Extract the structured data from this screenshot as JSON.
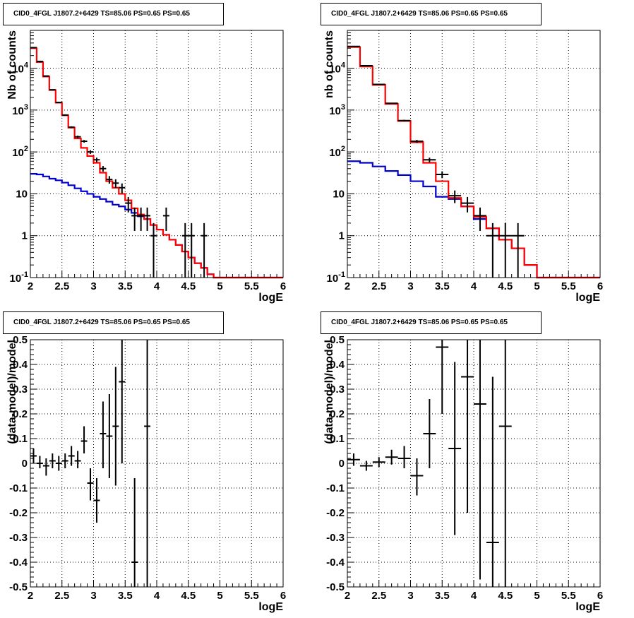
{
  "panels": [
    {
      "title": "CID0_4FGL J1807.2+6429 TS=85.06 PS=0.65 PS=0.65"
    },
    {
      "title": "CID0_4FGL J1807.2+6429 TS=85.06 PS=0.65 PS=0.65"
    },
    {
      "title": "CID0_4FGL J1807.2+6429 TS=85.06 PS=0.65 PS=0.65"
    },
    {
      "title": "CID0_4FGL J1807.2+6429 TS=85.06 PS=0.65 PS=0.65"
    }
  ],
  "colors": {
    "data": "#000000",
    "model_total": "#ff0000",
    "model_background": "#0000cc",
    "grid": "#000000"
  },
  "chart_data": [
    {
      "type": "line",
      "title": "CID0_4FGL J1807.2+6429 TS=85.06 PS=0.65 PS=0.65",
      "xlabel": "logE",
      "ylabel": "Nb of counts",
      "xlim": [
        2,
        6
      ],
      "ylim": [
        0.1,
        80000
      ],
      "yscale": "log",
      "grid": true,
      "xticks": [
        "2",
        "2.5",
        "3",
        "3.5",
        "4",
        "4.5",
        "5",
        "5.5",
        "6"
      ],
      "yticks": [
        "10^-1",
        "1",
        "10",
        "10^2",
        "10^3",
        "10^4"
      ],
      "bin_edges": [
        2.0,
        2.1,
        2.2,
        2.3,
        2.4,
        2.5,
        2.6,
        2.7,
        2.8,
        2.9,
        3.0,
        3.1,
        3.2,
        3.3,
        3.4,
        3.5,
        3.6,
        3.7,
        3.8,
        3.9,
        4.0,
        4.1,
        4.2,
        4.3,
        4.4,
        4.5,
        4.6,
        4.7,
        4.8,
        4.9,
        5.0,
        5.1,
        5.2,
        5.3,
        5.4,
        5.5,
        5.6,
        5.7,
        5.8,
        5.9,
        6.0
      ],
      "series": [
        {
          "values": [
            30000,
            14000,
            6300,
            3000,
            1500,
            750,
            380,
            210,
            125,
            80,
            55,
            32,
            20,
            14,
            10,
            7,
            4.5,
            3.2,
            2.5,
            1.8,
            1.4,
            1.05,
            0.8,
            0.6,
            0.42,
            0.3,
            0.22,
            0.17,
            0.12,
            0.1,
            0.1,
            0.1,
            0.1,
            0.1,
            0.1,
            0.1,
            0.1,
            0.1,
            0.1,
            0.1
          ]
        },
        {
          "values": [
            30,
            29,
            26,
            23,
            21,
            18.5,
            16,
            13.5,
            11.5,
            10,
            8.5,
            7.5,
            6.5,
            5.5,
            5,
            4.2,
            3.5,
            2.9,
            2.5,
            1.8,
            1.4,
            1.05,
            0.8,
            0.6,
            0.42,
            0.3,
            0.22,
            0.17,
            0.12,
            0.1,
            0.1,
            0.1,
            0.1,
            0.1,
            0.1,
            0.1,
            0.1,
            0.1,
            0.1,
            0.1
          ]
        },
        {
          "points": [
            {
              "x": 2.05,
              "y": 31000,
              "lo": 30800,
              "hi": 31200
            },
            {
              "x": 2.15,
              "y": 14500,
              "lo": 14380,
              "hi": 14620
            },
            {
              "x": 2.25,
              "y": 6500,
              "lo": 6420,
              "hi": 6580
            },
            {
              "x": 2.35,
              "y": 3050,
              "lo": 2995,
              "hi": 3105
            },
            {
              "x": 2.45,
              "y": 1520,
              "lo": 1481,
              "hi": 1559
            },
            {
              "x": 2.55,
              "y": 760,
              "lo": 732,
              "hi": 788
            },
            {
              "x": 2.65,
              "y": 390,
              "lo": 370,
              "hi": 410
            },
            {
              "x": 2.75,
              "y": 230,
              "lo": 215,
              "hi": 245
            },
            {
              "x": 2.85,
              "y": 180,
              "lo": 167,
              "hi": 193
            },
            {
              "x": 2.95,
              "y": 100,
              "lo": 90,
              "hi": 110
            },
            {
              "x": 3.05,
              "y": 65,
              "lo": 57,
              "hi": 73
            },
            {
              "x": 3.15,
              "y": 40,
              "lo": 34,
              "hi": 46
            },
            {
              "x": 3.25,
              "y": 22,
              "lo": 17.5,
              "hi": 26.5
            },
            {
              "x": 3.35,
              "y": 18,
              "lo": 13.8,
              "hi": 22.2
            },
            {
              "x": 3.45,
              "y": 14,
              "lo": 10.3,
              "hi": 17.7
            },
            {
              "x": 3.55,
              "y": 6,
              "lo": 3.6,
              "hi": 8.4
            },
            {
              "x": 3.65,
              "y": 3,
              "lo": 1.3,
              "hi": 4.7
            },
            {
              "x": 3.75,
              "y": 3,
              "lo": 1.3,
              "hi": 4.7
            },
            {
              "x": 3.85,
              "y": 3,
              "lo": 1.3,
              "hi": 4.7
            },
            {
              "x": 3.95,
              "y": 1,
              "lo": 0.1,
              "hi": 2.0
            },
            {
              "x": 4.15,
              "y": 3,
              "lo": 1.3,
              "hi": 4.7
            },
            {
              "x": 4.45,
              "y": 1,
              "lo": 0.1,
              "hi": 2.0
            },
            {
              "x": 4.55,
              "y": 1,
              "lo": 0.1,
              "hi": 2.0
            },
            {
              "x": 4.75,
              "y": 1,
              "lo": 0.1,
              "hi": 2.0
            }
          ]
        }
      ]
    },
    {
      "type": "line",
      "title": "CID0_4FGL J1807.2+6429 TS=85.06 PS=0.65 PS=0.65",
      "xlabel": "logE",
      "ylabel": "nb of counts",
      "xlim": [
        2,
        6
      ],
      "ylim": [
        0.1,
        80000
      ],
      "yscale": "log",
      "grid": true,
      "xticks": [
        "2",
        "2.5",
        "3",
        "3.5",
        "4",
        "4.5",
        "5",
        "5.5",
        "6"
      ],
      "yticks": [
        "10^-1",
        "1",
        "10",
        "10^2",
        "10^3",
        "10^4"
      ],
      "bin_edges": [
        2.0,
        2.2,
        2.4,
        2.6,
        2.8,
        3.0,
        3.2,
        3.4,
        3.6,
        3.8,
        4.0,
        4.2,
        4.4,
        4.6,
        4.8,
        5.0,
        5.2,
        5.4,
        5.6,
        5.8,
        6.0
      ],
      "series": [
        {
          "values": [
            32000,
            11000,
            4000,
            1400,
            550,
            170,
            55,
            20,
            8,
            5,
            2.8,
            1.5,
            0.8,
            0.5,
            0.2,
            0.1,
            0.1,
            0.1,
            0.1,
            0.1
          ]
        },
        {
          "values": [
            60,
            55,
            45,
            35,
            28,
            20,
            15,
            8.5,
            7.5,
            5,
            2.5,
            1.5,
            0.8,
            0.5,
            0.2,
            0.1,
            0.1,
            0.1,
            0.1,
            0.1
          ]
        },
        {
          "points": [
            {
              "x": 2.1,
              "y": 33000,
              "lo": 32800,
              "hi": 33200
            },
            {
              "x": 2.3,
              "y": 11500,
              "lo": 11380,
              "hi": 11620
            },
            {
              "x": 2.5,
              "y": 4100,
              "lo": 4030,
              "hi": 4170
            },
            {
              "x": 2.7,
              "y": 1450,
              "lo": 1410,
              "hi": 1490
            },
            {
              "x": 2.9,
              "y": 560,
              "lo": 535,
              "hi": 585
            },
            {
              "x": 3.1,
              "y": 180,
              "lo": 166,
              "hi": 194
            },
            {
              "x": 3.3,
              "y": 65,
              "lo": 57,
              "hi": 73
            },
            {
              "x": 3.5,
              "y": 29,
              "lo": 23.6,
              "hi": 34.4
            },
            {
              "x": 3.7,
              "y": 9,
              "lo": 6,
              "hi": 12
            },
            {
              "x": 3.9,
              "y": 6,
              "lo": 3.6,
              "hi": 8.4
            },
            {
              "x": 4.1,
              "y": 3,
              "lo": 1.3,
              "hi": 4.7
            },
            {
              "x": 4.3,
              "y": 1,
              "lo": 0.1,
              "hi": 2.0
            },
            {
              "x": 4.5,
              "y": 1,
              "lo": 0.1,
              "hi": 2.0
            },
            {
              "x": 4.7,
              "y": 1,
              "lo": 0.1,
              "hi": 2.0
            }
          ]
        }
      ]
    },
    {
      "type": "scatter",
      "title": "CID0_4FGL J1807.2+6429 TS=85.06 PS=0.65 PS=0.65",
      "xlabel": "logE",
      "ylabel": "(data-model)/model",
      "xlim": [
        2,
        6
      ],
      "ylim": [
        -0.5,
        0.5
      ],
      "grid": true,
      "xticks": [
        "2",
        "2.5",
        "3",
        "3.5",
        "4",
        "4.5",
        "5",
        "5.5",
        "6"
      ],
      "yticks": [
        "-0.5",
        "-0.4",
        "-0.3",
        "-0.2",
        "-0.1",
        "0",
        "0.1",
        "0.2",
        "0.3",
        "0.4",
        "0.5"
      ],
      "points": [
        {
          "x": 2.05,
          "y": 0.03,
          "lo": 0.0,
          "hi": 0.06
        },
        {
          "x": 2.15,
          "y": 0.0,
          "lo": -0.02,
          "hi": 0.03
        },
        {
          "x": 2.25,
          "y": -0.01,
          "lo": -0.05,
          "hi": 0.02
        },
        {
          "x": 2.35,
          "y": 0.01,
          "lo": -0.02,
          "hi": 0.04
        },
        {
          "x": 2.45,
          "y": 0.0,
          "lo": -0.03,
          "hi": 0.03
        },
        {
          "x": 2.55,
          "y": 0.01,
          "lo": -0.02,
          "hi": 0.04
        },
        {
          "x": 2.65,
          "y": 0.03,
          "lo": -0.01,
          "hi": 0.07
        },
        {
          "x": 2.75,
          "y": 0.01,
          "lo": -0.02,
          "hi": 0.05
        },
        {
          "x": 2.85,
          "y": 0.09,
          "lo": 0.04,
          "hi": 0.15
        },
        {
          "x": 2.95,
          "y": -0.08,
          "lo": -0.15,
          "hi": -0.02
        },
        {
          "x": 3.05,
          "y": -0.15,
          "lo": -0.24,
          "hi": -0.06
        },
        {
          "x": 3.15,
          "y": 0.12,
          "lo": -0.02,
          "hi": 0.25
        },
        {
          "x": 3.25,
          "y": 0.11,
          "lo": -0.06,
          "hi": 0.28
        },
        {
          "x": 3.35,
          "y": 0.15,
          "lo": -0.09,
          "hi": 0.39
        },
        {
          "x": 3.45,
          "y": 0.33,
          "lo": 0.0,
          "hi": 0.5
        },
        {
          "x": 3.65,
          "y": -0.4,
          "lo": -0.5,
          "hi": -0.06
        },
        {
          "x": 3.85,
          "y": 0.15,
          "lo": -0.5,
          "hi": 0.5
        }
      ]
    },
    {
      "type": "scatter",
      "title": "CID0_4FGL J1807.2+6429 TS=85.06 PS=0.65 PS=0.65",
      "xlabel": "logE",
      "ylabel": "(data-model)/model",
      "xlim": [
        2,
        6
      ],
      "ylim": [
        -0.5,
        0.5
      ],
      "grid": true,
      "xticks": [
        "2",
        "2.5",
        "3",
        "3.5",
        "4",
        "4.5",
        "5",
        "5.5",
        "6"
      ],
      "yticks": [
        "-0.5",
        "-0.4",
        "-0.3",
        "-0.2",
        "-0.1",
        "0",
        "0.1",
        "0.2",
        "0.3",
        "0.4",
        "0.5"
      ],
      "points": [
        {
          "x": 2.1,
          "y": 0.015,
          "lo": -0.01,
          "hi": 0.04
        },
        {
          "x": 2.3,
          "y": -0.01,
          "lo": -0.03,
          "hi": 0.01
        },
        {
          "x": 2.5,
          "y": 0.005,
          "lo": -0.015,
          "hi": 0.025
        },
        {
          "x": 2.7,
          "y": 0.025,
          "lo": -0.005,
          "hi": 0.055
        },
        {
          "x": 2.9,
          "y": 0.02,
          "lo": -0.02,
          "hi": 0.07
        },
        {
          "x": 3.1,
          "y": -0.05,
          "lo": -0.13,
          "hi": 0.02
        },
        {
          "x": 3.3,
          "y": 0.12,
          "lo": -0.02,
          "hi": 0.26
        },
        {
          "x": 3.5,
          "y": 0.47,
          "lo": 0.2,
          "hi": 0.5
        },
        {
          "x": 3.7,
          "y": 0.06,
          "lo": -0.29,
          "hi": 0.41
        },
        {
          "x": 3.9,
          "y": 0.35,
          "lo": -0.2,
          "hi": 0.5
        },
        {
          "x": 4.1,
          "y": 0.24,
          "lo": -0.47,
          "hi": 0.5
        },
        {
          "x": 4.3,
          "y": -0.32,
          "lo": -0.5,
          "hi": 0.35
        },
        {
          "x": 4.5,
          "y": 0.15,
          "lo": -0.5,
          "hi": 0.5
        }
      ]
    }
  ]
}
